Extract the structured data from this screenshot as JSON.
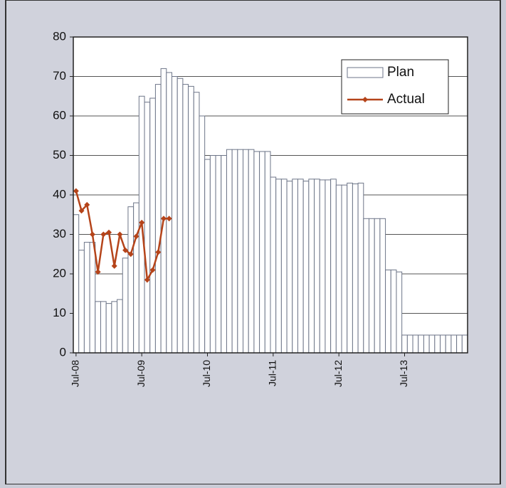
{
  "chart_data": {
    "type": "bar_line",
    "categories": [
      "Jul-08",
      null,
      null,
      null,
      null,
      null,
      null,
      null,
      null,
      null,
      null,
      null,
      "Jul-09",
      null,
      null,
      null,
      null,
      null,
      null,
      null,
      null,
      null,
      null,
      null,
      "Jul-10",
      null,
      null,
      null,
      null,
      null,
      null,
      null,
      null,
      null,
      null,
      null,
      "Jul-11",
      null,
      null,
      null,
      null,
      null,
      null,
      null,
      null,
      null,
      null,
      null,
      "Jul-12",
      null,
      null,
      null,
      null,
      null,
      null,
      null,
      null,
      null,
      null,
      null,
      "Jul-13",
      null,
      null,
      null,
      null,
      null,
      null,
      null,
      null,
      null,
      null,
      null
    ],
    "series": [
      {
        "name": "Plan",
        "type": "bar",
        "color": "#ffffff",
        "stroke": "#6d7588",
        "values": [
          35,
          26,
          28,
          28,
          13,
          13,
          12.5,
          13,
          13.5,
          24,
          37,
          38,
          65,
          63.5,
          64.5,
          68,
          72,
          71,
          70,
          69.5,
          68,
          67.5,
          66,
          60,
          49,
          50,
          50,
          50,
          51.5,
          51.5,
          51.5,
          51.5,
          51.5,
          51,
          51,
          51,
          44.5,
          44,
          44,
          43.5,
          44,
          44,
          43.5,
          44,
          44,
          43.8,
          43.8,
          44,
          42.5,
          42.5,
          43,
          42.8,
          43,
          34,
          34,
          34,
          34,
          21,
          21,
          20.5,
          4.5,
          4.5,
          4.5,
          4.5,
          4.5,
          4.5,
          4.5,
          4.5,
          4.5,
          4.5,
          4.5,
          4.5
        ]
      },
      {
        "name": "Actual",
        "type": "line",
        "color": "#b5441a",
        "values": [
          41,
          36,
          37.5,
          30,
          20.5,
          30,
          30.5,
          22,
          30,
          26,
          25,
          29.5,
          33,
          18.5,
          21,
          25.5,
          34,
          34,
          null,
          null,
          null,
          null,
          null,
          null,
          null,
          null,
          null,
          null,
          null,
          null,
          null,
          null,
          null,
          null,
          null,
          null,
          null,
          null,
          null,
          null,
          null,
          null,
          null,
          null,
          null,
          null,
          null,
          null,
          null,
          null,
          null,
          null,
          null,
          null,
          null,
          null,
          null,
          null,
          null,
          null,
          null,
          null,
          null,
          null,
          null,
          null,
          null,
          null,
          null,
          null,
          null,
          null
        ]
      }
    ],
    "ylim": [
      0,
      80
    ],
    "yticks": [
      0,
      10,
      20,
      30,
      40,
      50,
      60,
      70,
      80
    ],
    "grid": true,
    "legend": "top-right"
  }
}
